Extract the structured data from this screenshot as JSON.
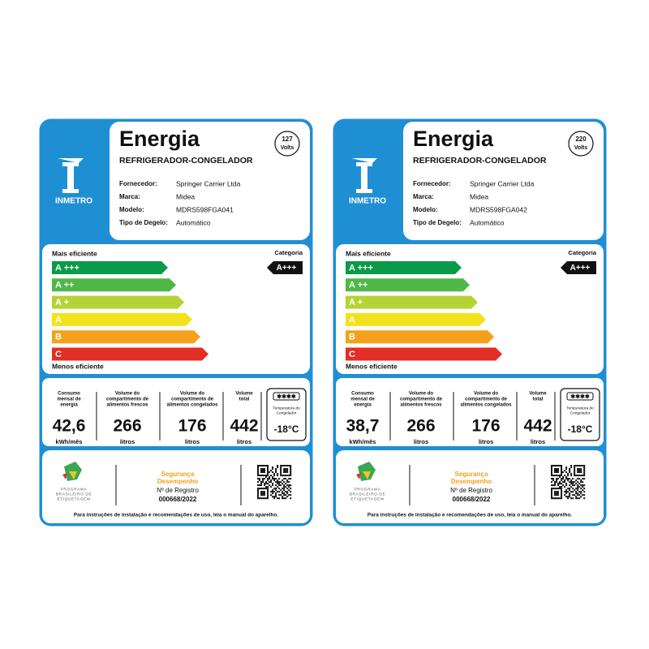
{
  "labels": [
    {
      "header": {
        "title": "Energia",
        "subtitle": "REFRIGERADOR-CONGELADOR",
        "voltage": "127",
        "voltage_unit": "Volts",
        "logo": "INMETRO"
      },
      "fields": [
        {
          "label": "Fornecedor:",
          "value": "Springer Carrier Ltda"
        },
        {
          "label": "Marca:",
          "value": "Midea"
        },
        {
          "label": "Modelo:",
          "value": "MDRS598FGA041"
        },
        {
          "label": "Tipo de Degelo:",
          "value": "Automático"
        }
      ],
      "scale": {
        "top": "Mais eficiente",
        "bottom": "Menos eficiente",
        "classes": [
          "A +++",
          "A ++",
          "A +",
          "A",
          "B",
          "C"
        ],
        "category_label": "Categoria",
        "category": "A+++"
      },
      "stats": [
        {
          "label": [
            "Consumo",
            "mensal de",
            "energia"
          ],
          "value": "42,6",
          "unit": "kWh/mês"
        },
        {
          "label": [
            "Volume do",
            "compartimento de",
            "alimentos frescos"
          ],
          "value": "266",
          "unit": "litros"
        },
        {
          "label": [
            "Volume do",
            "compartimento de",
            "alimentos congelados"
          ],
          "value": "176",
          "unit": "litros"
        },
        {
          "label": [
            "Volume",
            "total"
          ],
          "value": "442",
          "unit": "litros"
        }
      ],
      "freezer": {
        "label": [
          "Temperatura do",
          "Congelador"
        ],
        "value": "-18°C"
      },
      "program": [
        "PROGRAMA",
        "BRASILEIRO DE",
        "ETIQUETAGEM"
      ],
      "registry": {
        "line1": "Segurança",
        "line2": "Desempenho",
        "label": "Nº de Registro",
        "number": "000668/2022"
      },
      "footer": "Para instruções de instalação e recomendações de uso, leia o manual do aparelho."
    },
    {
      "header": {
        "title": "Energia",
        "subtitle": "REFRIGERADOR-CONGELADOR",
        "voltage": "220",
        "voltage_unit": "Volts",
        "logo": "INMETRO"
      },
      "fields": [
        {
          "label": "Fornecedor:",
          "value": "Springer Carrier Ltda"
        },
        {
          "label": "Marca:",
          "value": "Midea"
        },
        {
          "label": "Modelo:",
          "value": "MDRS598FGA042"
        },
        {
          "label": "Tipo de Degelo:",
          "value": "Automático"
        }
      ],
      "scale": {
        "top": "Mais eficiente",
        "bottom": "Menos eficiente",
        "classes": [
          "A +++",
          "A ++",
          "A +",
          "A",
          "B",
          "C"
        ],
        "category_label": "Categoria",
        "category": "A+++"
      },
      "stats": [
        {
          "label": [
            "Consumo",
            "mensal de",
            "energia"
          ],
          "value": "38,7",
          "unit": "kWh/mês"
        },
        {
          "label": [
            "Volume do",
            "compartimento de",
            "alimentos frescos"
          ],
          "value": "266",
          "unit": "litros"
        },
        {
          "label": [
            "Volume do",
            "compartimento de",
            "alimentos congelados"
          ],
          "value": "176",
          "unit": "litros"
        },
        {
          "label": [
            "Volume",
            "total"
          ],
          "value": "442",
          "unit": "litros"
        }
      ],
      "freezer": {
        "label": [
          "Temperatura do",
          "Congelador"
        ],
        "value": "-18°C"
      },
      "program": [
        "PROGRAMA",
        "BRASILEIRO DE",
        "ETIQUETAGEM"
      ],
      "registry": {
        "line1": "Segurança",
        "line2": "Desempenho",
        "label": "Nº de Registro",
        "number": "000668/2022"
      },
      "footer": "Para instruções de instalação e recomendações de uso, leia o manual do aparelho."
    }
  ]
}
